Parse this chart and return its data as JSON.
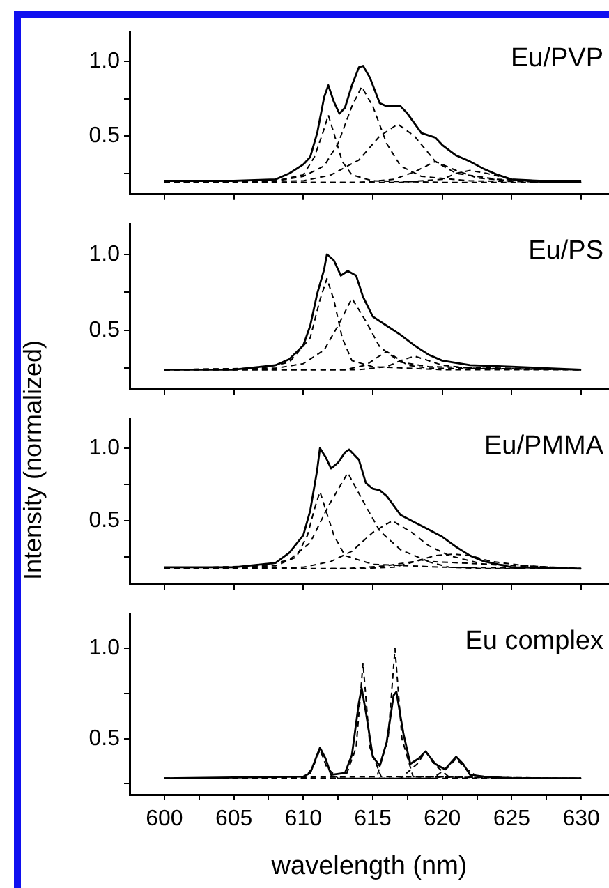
{
  "chart_data": [
    {
      "type": "line",
      "title": "Eu/PVP",
      "ylabel": "Intensity (normalized)",
      "tick_labels": "y",
      "grid": false,
      "legend": false,
      "marker": "none",
      "xlim": [
        597.5,
        632
      ],
      "xticks": [
        {
          "value": 600,
          "label": null
        },
        {
          "value": 605,
          "label": null
        },
        {
          "value": 610,
          "label": null
        },
        {
          "value": 615,
          "label": null
        },
        {
          "value": 620,
          "label": null
        },
        {
          "value": 625,
          "label": null
        },
        {
          "value": 630,
          "label": null
        }
      ],
      "ylim": [
        0.11,
        1.2
      ],
      "yticks": [
        {
          "value": 0.25,
          "label": null
        },
        {
          "value": 0.5,
          "label": "0.5"
        },
        {
          "value": 0.75,
          "label": null
        },
        {
          "value": 1,
          "label": "1.0"
        }
      ],
      "series": [
        {
          "color": "#000000",
          "line_style": "solid",
          "x": [
            600,
            605,
            608,
            609,
            610,
            610.5,
            611,
            611.5,
            611.8,
            612.2,
            612.6,
            613,
            613.5,
            614,
            614.3,
            614.8,
            615.5,
            616,
            617,
            617.5,
            618.5,
            619.5,
            620,
            621,
            622,
            623,
            624,
            625,
            627,
            630
          ],
          "values": [
            0.2,
            0.2,
            0.21,
            0.25,
            0.31,
            0.36,
            0.52,
            0.76,
            0.84,
            0.73,
            0.65,
            0.69,
            0.84,
            0.96,
            0.97,
            0.89,
            0.72,
            0.7,
            0.7,
            0.65,
            0.52,
            0.49,
            0.44,
            0.37,
            0.33,
            0.28,
            0.24,
            0.21,
            0.2,
            0.2
          ]
        },
        {
          "color": "#000000",
          "line_style": "dashed",
          "x": [
            600,
            608,
            610,
            610.8,
            611.4,
            611.8,
            612.2,
            612.8,
            613.5,
            615,
            620,
            630
          ],
          "values": [
            0.19,
            0.2,
            0.24,
            0.36,
            0.52,
            0.64,
            0.52,
            0.33,
            0.24,
            0.2,
            0.19,
            0.19
          ]
        },
        {
          "color": "#000000",
          "line_style": "dashed",
          "x": [
            600,
            608,
            610,
            611.5,
            612.5,
            613.5,
            614.2,
            615,
            616,
            617,
            618.5,
            622,
            630
          ],
          "values": [
            0.19,
            0.2,
            0.23,
            0.3,
            0.45,
            0.7,
            0.83,
            0.7,
            0.45,
            0.3,
            0.23,
            0.2,
            0.19
          ]
        },
        {
          "color": "#000000",
          "line_style": "dashed",
          "x": [
            600,
            610,
            612,
            614,
            615.5,
            616.8,
            618,
            619.5,
            621,
            624,
            630
          ],
          "values": [
            0.19,
            0.2,
            0.24,
            0.34,
            0.5,
            0.58,
            0.5,
            0.33,
            0.25,
            0.21,
            0.19
          ]
        },
        {
          "color": "#000000",
          "line_style": "dashed",
          "x": [
            600,
            614,
            616.5,
            618,
            619.5,
            621,
            622.5,
            625,
            630
          ],
          "values": [
            0.19,
            0.19,
            0.21,
            0.26,
            0.33,
            0.27,
            0.22,
            0.2,
            0.19
          ]
        },
        {
          "color": "#000000",
          "line_style": "dashed",
          "x": [
            600,
            617,
            620,
            621,
            622,
            623.2,
            625,
            627,
            630
          ],
          "values": [
            0.19,
            0.19,
            0.21,
            0.25,
            0.27,
            0.25,
            0.21,
            0.19,
            0.19
          ]
        }
      ]
    },
    {
      "type": "line",
      "title": "Eu/PS",
      "tick_labels": "y",
      "grid": false,
      "legend": false,
      "marker": "none",
      "xlim": [
        597.5,
        632
      ],
      "xticks": [
        {
          "value": 600,
          "label": null
        },
        {
          "value": 605,
          "label": null
        },
        {
          "value": 610,
          "label": null
        },
        {
          "value": 615,
          "label": null
        },
        {
          "value": 620,
          "label": null
        },
        {
          "value": 625,
          "label": null
        },
        {
          "value": 630,
          "label": null
        }
      ],
      "ylim": [
        0.11,
        1.2
      ],
      "yticks": [
        {
          "value": 0.25,
          "label": null
        },
        {
          "value": 0.5,
          "label": "0.5"
        },
        {
          "value": 0.75,
          "label": null
        },
        {
          "value": 1,
          "label": "1.0"
        }
      ],
      "series": [
        {
          "color": "#000000",
          "line_style": "solid",
          "x": [
            600,
            605,
            608,
            609,
            610,
            610.5,
            611,
            611.5,
            611.7,
            612.2,
            612.7,
            613.2,
            613.8,
            614.3,
            615,
            616,
            617,
            618,
            619,
            620,
            622,
            625,
            630
          ],
          "values": [
            0.24,
            0.24,
            0.27,
            0.31,
            0.4,
            0.53,
            0.74,
            0.9,
            1.0,
            0.96,
            0.86,
            0.89,
            0.86,
            0.72,
            0.59,
            0.53,
            0.47,
            0.4,
            0.34,
            0.3,
            0.27,
            0.26,
            0.24
          ]
        },
        {
          "color": "#000000",
          "line_style": "dashed",
          "x": [
            600,
            607,
            609,
            610.5,
            611.2,
            611.7,
            612.2,
            612.8,
            613.5,
            615,
            620,
            630
          ],
          "values": [
            0.24,
            0.25,
            0.29,
            0.45,
            0.7,
            0.84,
            0.7,
            0.45,
            0.3,
            0.26,
            0.24,
            0.24
          ]
        },
        {
          "color": "#000000",
          "line_style": "dashed",
          "x": [
            600,
            608,
            610,
            611.5,
            612.5,
            613.5,
            614.5,
            615.5,
            617,
            619,
            630
          ],
          "values": [
            0.24,
            0.25,
            0.28,
            0.37,
            0.53,
            0.71,
            0.56,
            0.39,
            0.29,
            0.26,
            0.24
          ]
        },
        {
          "color": "#000000",
          "line_style": "dashed",
          "x": [
            600,
            613,
            614.5,
            615.3,
            616,
            616.7,
            617.5,
            619,
            630
          ],
          "values": [
            0.24,
            0.24,
            0.27,
            0.32,
            0.36,
            0.32,
            0.27,
            0.25,
            0.24
          ]
        },
        {
          "color": "#000000",
          "line_style": "dashed",
          "x": [
            600,
            614,
            616,
            617,
            618,
            619,
            620,
            622,
            630
          ],
          "values": [
            0.24,
            0.24,
            0.26,
            0.3,
            0.33,
            0.3,
            0.27,
            0.25,
            0.24
          ]
        }
      ]
    },
    {
      "type": "line",
      "title": "Eu/PMMA",
      "tick_labels": "y",
      "grid": false,
      "legend": false,
      "marker": "none",
      "xlim": [
        597.5,
        632
      ],
      "xticks": [
        {
          "value": 600,
          "label": null
        },
        {
          "value": 605,
          "label": null
        },
        {
          "value": 610,
          "label": null
        },
        {
          "value": 615,
          "label": null
        },
        {
          "value": 620,
          "label": null
        },
        {
          "value": 625,
          "label": null
        },
        {
          "value": 630,
          "label": null
        }
      ],
      "ylim": [
        0.06,
        1.2
      ],
      "yticks": [
        {
          "value": 0.25,
          "label": null
        },
        {
          "value": 0.5,
          "label": "0.5"
        },
        {
          "value": 0.75,
          "label": null
        },
        {
          "value": 1,
          "label": "1.0"
        }
      ],
      "series": [
        {
          "color": "#000000",
          "line_style": "solid",
          "x": [
            600,
            605,
            608,
            609,
            610,
            610.5,
            611,
            611.2,
            611.6,
            612,
            612.5,
            613,
            613.3,
            614,
            614.5,
            615,
            615.5,
            616,
            617,
            618,
            619,
            620,
            621,
            622,
            623,
            625,
            630
          ],
          "values": [
            0.18,
            0.18,
            0.21,
            0.28,
            0.4,
            0.57,
            0.85,
            1.0,
            0.94,
            0.86,
            0.9,
            0.97,
            0.99,
            0.92,
            0.76,
            0.72,
            0.71,
            0.67,
            0.54,
            0.49,
            0.44,
            0.39,
            0.32,
            0.26,
            0.22,
            0.18,
            0.17
          ]
        },
        {
          "color": "#000000",
          "line_style": "dashed",
          "x": [
            600,
            608,
            609.5,
            610.3,
            610.8,
            611.2,
            611.6,
            612.2,
            613,
            615,
            620,
            630
          ],
          "values": [
            0.17,
            0.19,
            0.25,
            0.4,
            0.58,
            0.7,
            0.58,
            0.4,
            0.26,
            0.2,
            0.18,
            0.17
          ]
        },
        {
          "color": "#000000",
          "line_style": "dashed",
          "x": [
            600,
            607,
            609,
            610.5,
            611.8,
            613.2,
            614.5,
            615.5,
            617,
            619,
            630
          ],
          "values": [
            0.17,
            0.19,
            0.23,
            0.35,
            0.6,
            0.83,
            0.6,
            0.43,
            0.3,
            0.22,
            0.17
          ]
        },
        {
          "color": "#000000",
          "line_style": "dashed",
          "x": [
            600,
            610,
            612,
            613.5,
            615,
            616.4,
            617.8,
            619,
            620.5,
            623,
            630
          ],
          "values": [
            0.17,
            0.18,
            0.22,
            0.29,
            0.42,
            0.5,
            0.42,
            0.33,
            0.26,
            0.2,
            0.17
          ]
        },
        {
          "color": "#000000",
          "line_style": "dashed",
          "x": [
            600,
            613,
            616,
            618,
            619.5,
            620.8,
            622,
            623.5,
            626,
            630
          ],
          "values": [
            0.17,
            0.17,
            0.19,
            0.22,
            0.26,
            0.27,
            0.26,
            0.22,
            0.19,
            0.17
          ]
        },
        {
          "color": "#000000",
          "line_style": "dashed",
          "x": [
            612,
            614,
            616.5,
            617.7,
            618.5,
            619.3,
            620.5,
            623,
            626
          ],
          "values": [
            0.17,
            0.17,
            0.18,
            0.21,
            0.23,
            0.21,
            0.18,
            0.17,
            0.17
          ]
        }
      ]
    },
    {
      "type": "line",
      "title": "Eu complex",
      "xlabel": "wavelength (nm)",
      "grid": false,
      "legend": false,
      "marker": "none",
      "xlim": [
        597.5,
        632
      ],
      "xticks": [
        600,
        {
          "value": 602.5,
          "label": null
        },
        605,
        {
          "value": 607.5,
          "label": null
        },
        610,
        {
          "value": 612.5,
          "label": null
        },
        615,
        {
          "value": 617.5,
          "label": null
        },
        620,
        {
          "value": 622.5,
          "label": null
        },
        625,
        {
          "value": 627.5,
          "label": null
        },
        630
      ],
      "ylim": [
        0.19,
        1.19
      ],
      "yticks": [
        {
          "value": 0.25,
          "label": null
        },
        {
          "value": 0.5,
          "label": "0.5"
        },
        {
          "value": 0.75,
          "label": null
        },
        {
          "value": 1,
          "label": "1.0"
        }
      ],
      "series": [
        {
          "color": "#000000",
          "line_style": "solid",
          "x": [
            600,
            610,
            610.5,
            611,
            611.2,
            611.6,
            612,
            613,
            613.5,
            614,
            614.2,
            614.5,
            615,
            615.5,
            616,
            616.5,
            616.7,
            617.2,
            617.7,
            618.3,
            618.8,
            619.5,
            620.2,
            621,
            621.5,
            622,
            623,
            625,
            630
          ],
          "values": [
            0.28,
            0.29,
            0.31,
            0.41,
            0.45,
            0.39,
            0.3,
            0.31,
            0.41,
            0.7,
            0.78,
            0.65,
            0.4,
            0.35,
            0.48,
            0.74,
            0.76,
            0.53,
            0.36,
            0.39,
            0.43,
            0.36,
            0.33,
            0.4,
            0.36,
            0.3,
            0.29,
            0.28,
            0.28
          ]
        },
        {
          "color": "#000000",
          "line_style": "dashed",
          "x": [
            600,
            610,
            610.7,
            611.2,
            611.7,
            612.5,
            630
          ],
          "values": [
            0.28,
            0.28,
            0.34,
            0.44,
            0.34,
            0.28,
            0.28
          ]
        },
        {
          "color": "#000000",
          "line_style": "dashed",
          "x": [
            600,
            613,
            613.8,
            614.3,
            614.8,
            615.6,
            630
          ],
          "values": [
            0.28,
            0.28,
            0.45,
            0.92,
            0.45,
            0.29,
            0.28
          ]
        },
        {
          "color": "#000000",
          "line_style": "dashed",
          "x": [
            600,
            615.3,
            616.1,
            616.6,
            617.1,
            617.9,
            630
          ],
          "values": [
            0.28,
            0.29,
            0.5,
            1.0,
            0.5,
            0.29,
            0.28
          ]
        },
        {
          "color": "#000000",
          "line_style": "dashed",
          "x": [
            600,
            617,
            618.2,
            618.8,
            619.4,
            620.6,
            630
          ],
          "values": [
            0.28,
            0.28,
            0.36,
            0.43,
            0.36,
            0.28,
            0.28
          ]
        },
        {
          "color": "#000000",
          "line_style": "dashed",
          "x": [
            600,
            619.3,
            620.4,
            621,
            621.6,
            622.7,
            630
          ],
          "values": [
            0.28,
            0.28,
            0.34,
            0.39,
            0.34,
            0.28,
            0.28
          ]
        }
      ]
    }
  ]
}
